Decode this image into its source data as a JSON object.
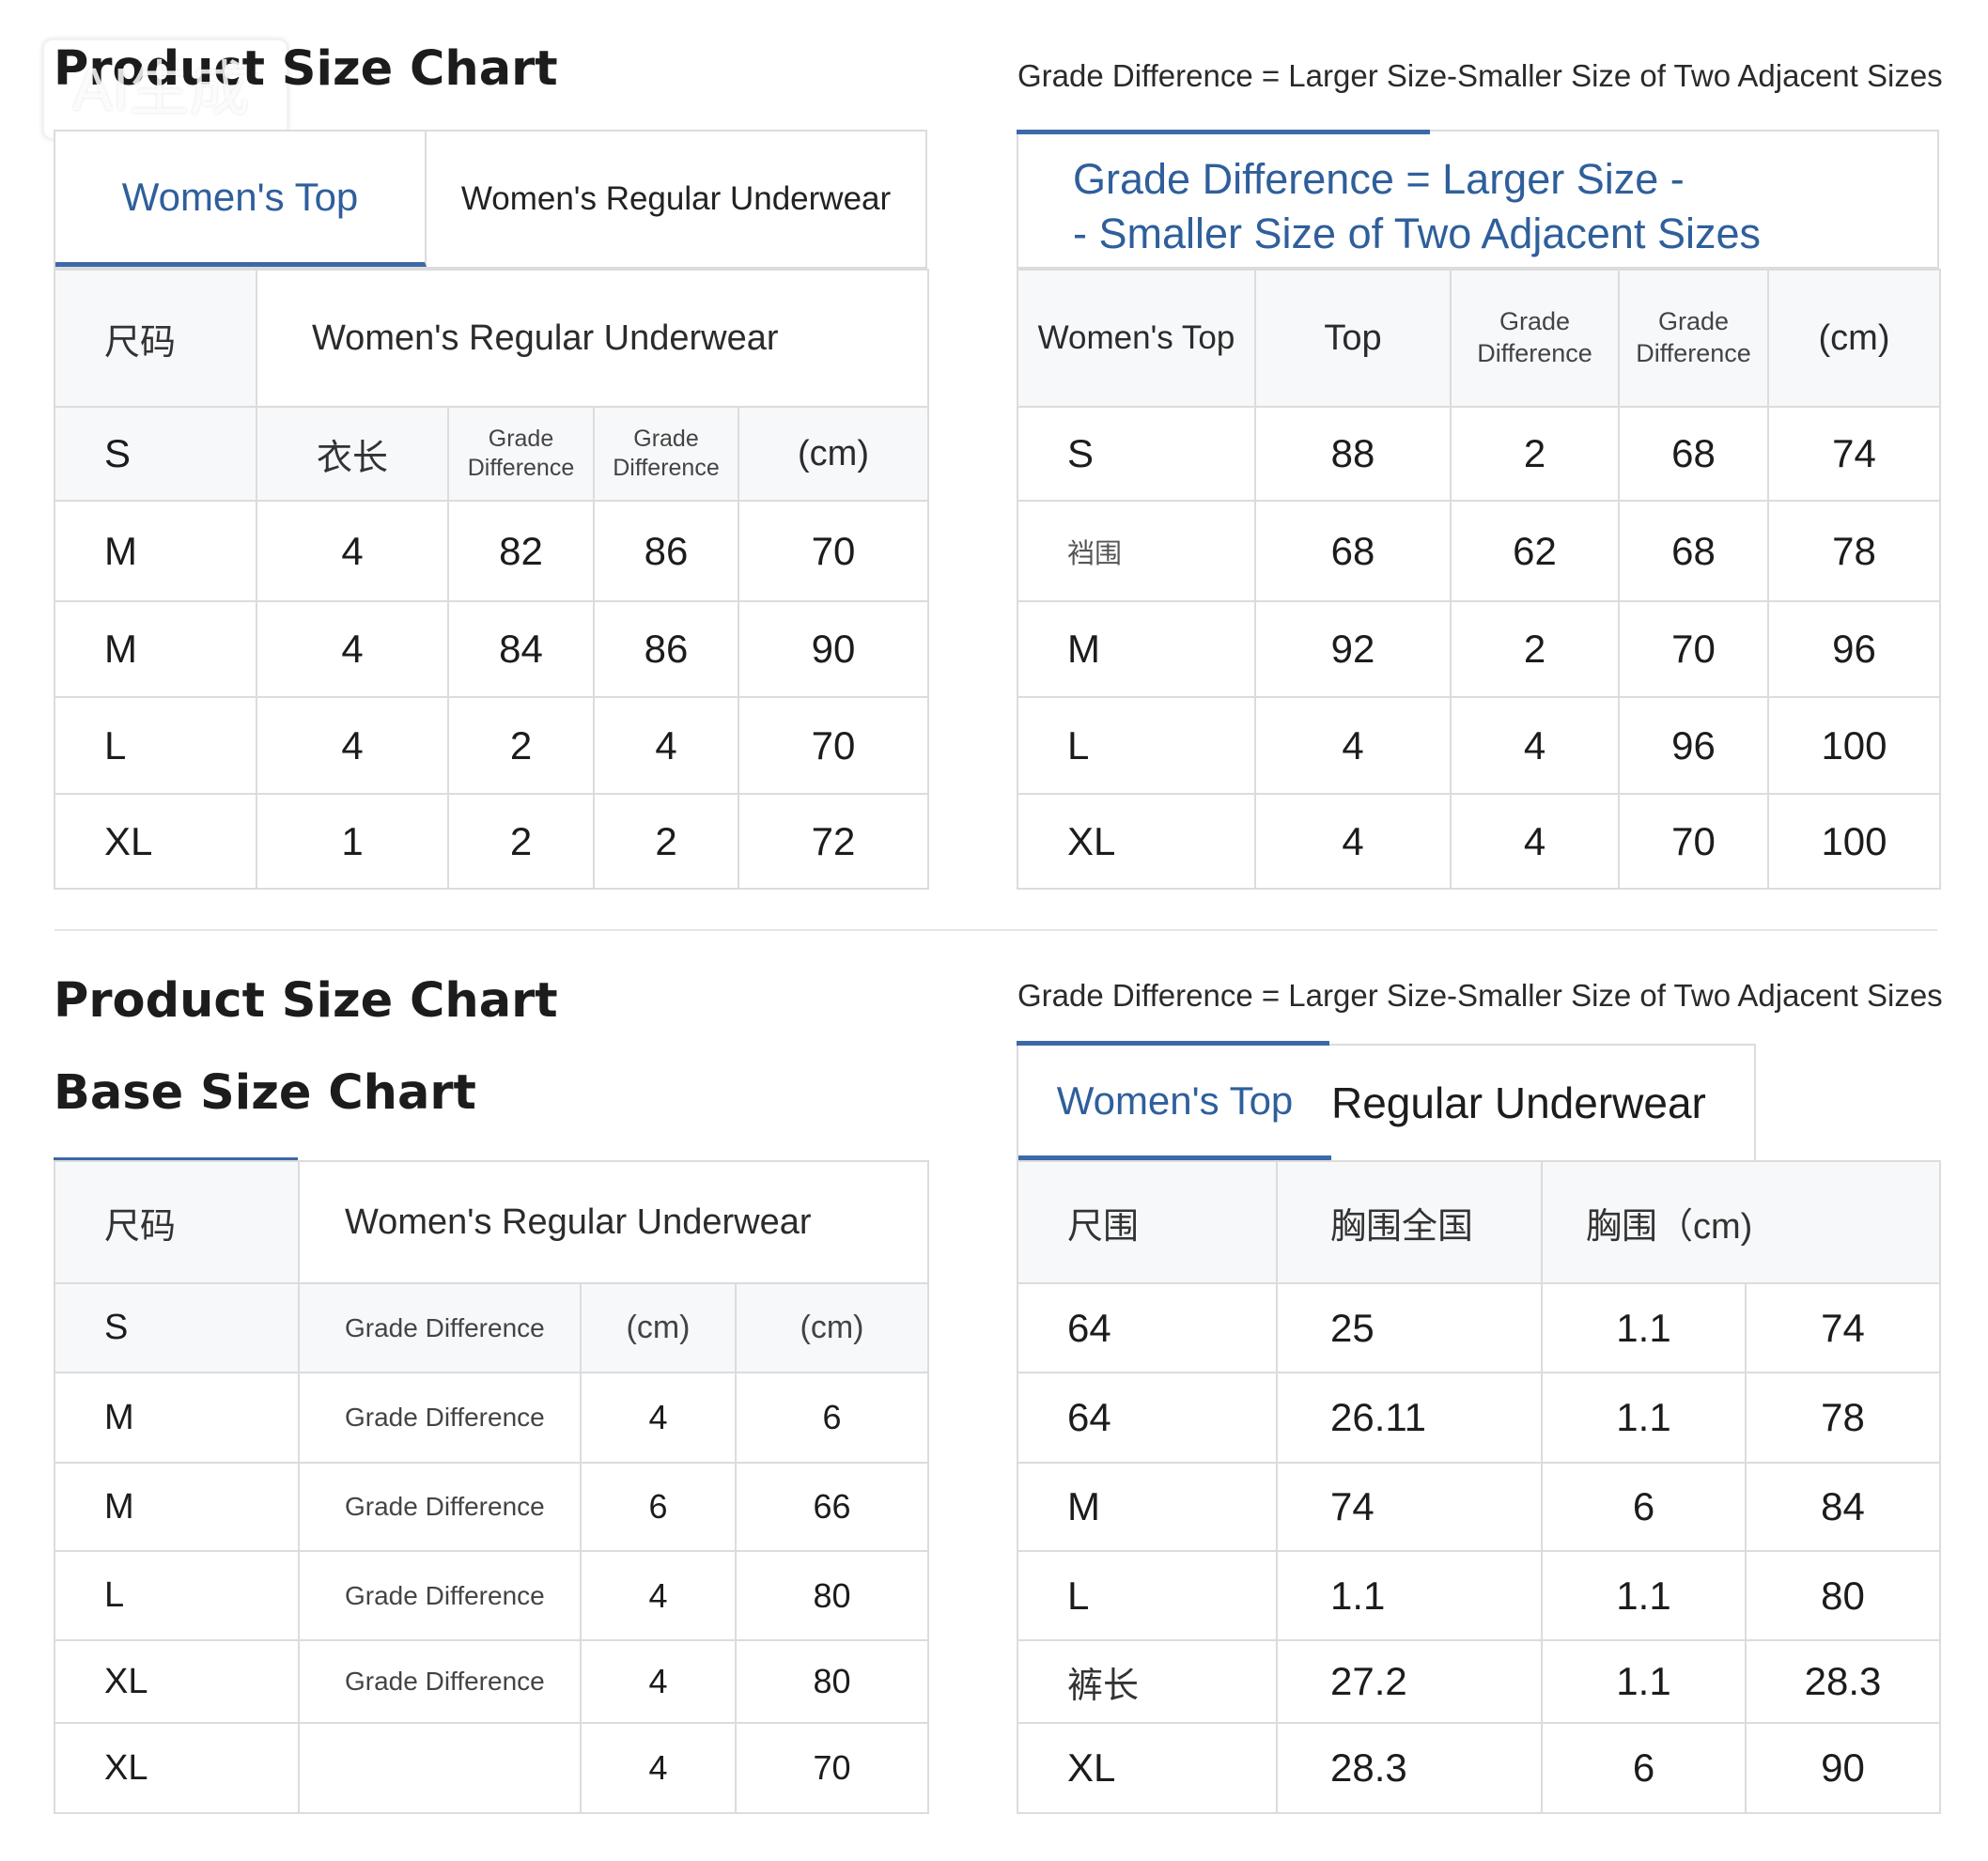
{
  "watermark": "AI生成",
  "top_left": {
    "title": "Product Size Chart",
    "tabs": [
      "Women's Top",
      "Women's Regular Underwear"
    ],
    "header": [
      "尺码",
      "Women's Regular Underwear"
    ],
    "rows": [
      [
        "S",
        "衣长",
        "Grade\nDifference",
        "Grade\nDifference",
        "(cm)"
      ],
      [
        "M",
        "4",
        "82",
        "86",
        "70"
      ],
      [
        "M",
        "4",
        "84",
        "86",
        "90"
      ],
      [
        "L",
        "4",
        "2",
        "4",
        "70"
      ],
      [
        "XL",
        "1",
        "2",
        "2",
        "72"
      ]
    ]
  },
  "top_right": {
    "note": "Grade Difference = Larger Size-Smaller Size of Two Adjacent Sizes",
    "heading_line1": "Grade Difference = Larger Size -",
    "heading_line2": "- Smaller Size of Two Adjacent Sizes",
    "header": [
      "Women's Top",
      "Top",
      "Grade\nDifference",
      "Grade\nDifference",
      "(cm)"
    ],
    "rows": [
      [
        "S",
        "88",
        "2",
        "68",
        "74"
      ],
      [
        "裆围",
        "68",
        "62",
        "68",
        "78"
      ],
      [
        "M",
        "92",
        "2",
        "70",
        "96"
      ],
      [
        "L",
        "4",
        "4",
        "96",
        "100"
      ],
      [
        "XL",
        "4",
        "4",
        "70",
        "100"
      ]
    ]
  },
  "bottom_left": {
    "title1": "Product Size Chart",
    "title2": "Base Size Chart",
    "header": [
      "尺码",
      "Women's Regular Underwear"
    ],
    "rows": [
      [
        "S",
        "Grade Difference",
        "(cm)",
        "(cm)"
      ],
      [
        "M",
        "Grade Difference",
        "4",
        "6"
      ],
      [
        "M",
        "Grade Difference",
        "6",
        "66"
      ],
      [
        "L",
        "Grade Difference",
        "4",
        "80"
      ],
      [
        "XL",
        "Grade Difference",
        "4",
        "80"
      ],
      [
        "XL",
        "",
        "4",
        "70"
      ]
    ]
  },
  "bottom_right": {
    "note": "Grade Difference = Larger Size-Smaller Size of Two Adjacent Sizes",
    "tabs": [
      "Women's Top",
      "Regular Underwear"
    ],
    "header": [
      "尺围",
      "胸围全国",
      "胸围（cm)"
    ],
    "rows": [
      [
        "64",
        "25",
        "1.1",
        "74"
      ],
      [
        "64",
        "26.11",
        "1.1",
        "78"
      ],
      [
        "M",
        "74",
        "6",
        "84"
      ],
      [
        "L",
        "1.1",
        "1.1",
        "80"
      ],
      [
        "裤长",
        "27.2",
        "1.1",
        "28.3"
      ],
      [
        "XL",
        "28.3",
        "6",
        "90"
      ]
    ]
  }
}
